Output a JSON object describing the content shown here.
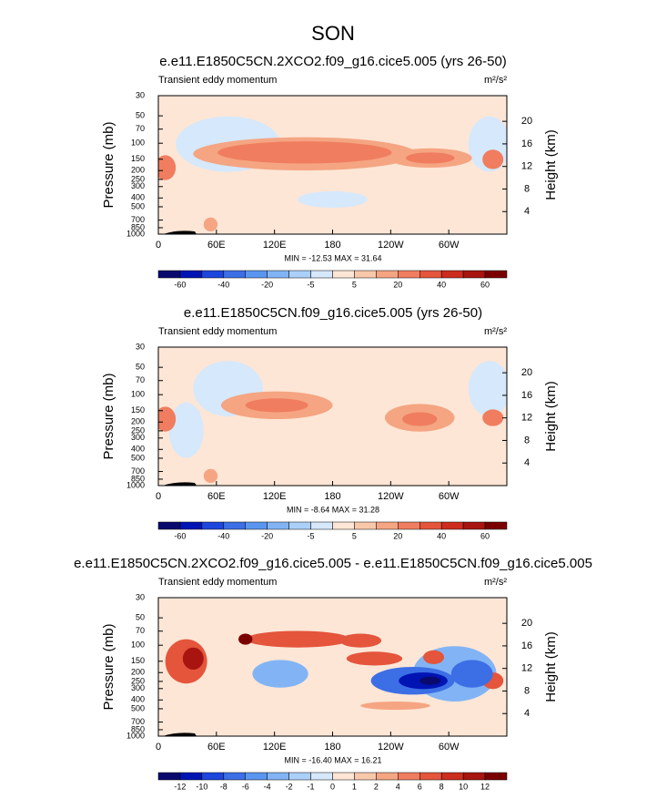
{
  "chart_data": {
    "type": "contour",
    "title": "SON",
    "axes": {
      "xlim": [
        0,
        360
      ],
      "xticks": [
        0,
        {
          "value": 60,
          "label": "60E"
        },
        {
          "value": 120,
          "label": "120E"
        },
        180,
        {
          "value": 240,
          "label": "120W"
        },
        {
          "value": 300,
          "label": "60W"
        }
      ],
      "ylim": [
        1000,
        30
      ],
      "log_y": true,
      "yticks": [
        30,
        50,
        70,
        100,
        150,
        200,
        250,
        300,
        400,
        500,
        700,
        850,
        1000
      ],
      "y_label": "Pressure (mb)",
      "y2ticks": [
        4,
        8,
        12,
        16,
        20
      ],
      "y2_label": "Height (km)"
    },
    "panels": [
      {
        "title": "e.e11.E1850C5CN.2XCO2.f09_g16.cice5.005 (yrs 26-50)",
        "left_label": "Transient eddy momentum",
        "units": "m²/s²",
        "stats": "MIN = -12.53  MAX = 31.64",
        "colorbar": {
          "colors": [
            "#0a0a6e",
            "#0014b4",
            "#1e46dc",
            "#3c6ee6",
            "#5a96f0",
            "#82b4f5",
            "#aad0fa",
            "#d6e8fb",
            "#fde6d6",
            "#f8c8aa",
            "#f5a582",
            "#f07d5f",
            "#e4553c",
            "#cc2d1e",
            "#a8140f",
            "#7a0000"
          ],
          "labels": [
            -60,
            -40,
            -20,
            -5,
            5,
            20,
            40,
            60
          ]
        }
      },
      {
        "title": "e.e11.E1850C5CN.f09_g16.cice5.005 (yrs 26-50)",
        "left_label": "Transient eddy momentum",
        "units": "m²/s²",
        "stats": "MIN = -8.64  MAX = 31.28",
        "colorbar": {
          "colors": [
            "#0a0a6e",
            "#0014b4",
            "#1e46dc",
            "#3c6ee6",
            "#5a96f0",
            "#82b4f5",
            "#aad0fa",
            "#d6e8fb",
            "#fde6d6",
            "#f8c8aa",
            "#f5a582",
            "#f07d5f",
            "#e4553c",
            "#cc2d1e",
            "#a8140f",
            "#7a0000"
          ],
          "labels": [
            -60,
            -40,
            -20,
            -5,
            5,
            20,
            40,
            60
          ]
        }
      },
      {
        "title": "e.e11.E1850C5CN.2XCO2.f09_g16.cice5.005 - e.e11.E1850C5CN.f09_g16.cice5.005",
        "left_label": "Transient eddy momentum",
        "units": "m²/s²",
        "stats": "MIN = -16.40  MAX = 16.21",
        "colorbar": {
          "colors": [
            "#0a0a6e",
            "#0014b4",
            "#1e46dc",
            "#3c6ee6",
            "#5a96f0",
            "#82b4f5",
            "#aad0fa",
            "#d6e8fb",
            "#fde6d6",
            "#f8c8aa",
            "#f5a582",
            "#f07d5f",
            "#e4553c",
            "#cc2d1e",
            "#a8140f",
            "#7a0000"
          ],
          "labels": [
            -12,
            -10,
            -8,
            -6,
            -4,
            -2,
            -1,
            0,
            1,
            2,
            4,
            6,
            8,
            10,
            12
          ]
        }
      }
    ]
  }
}
